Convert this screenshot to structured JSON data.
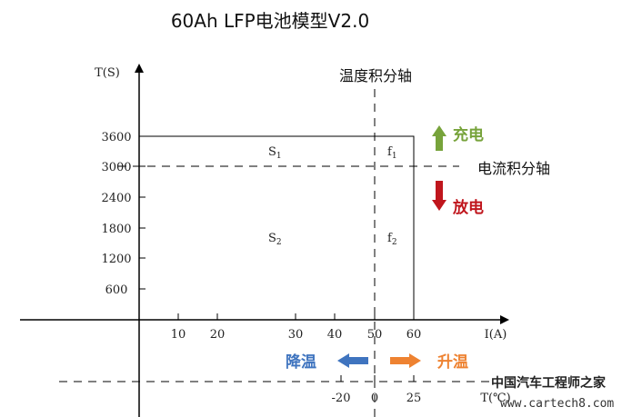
{
  "title": "60Ah LFP电池模型V2.0",
  "y_axis": {
    "label": "T(S)",
    "ticks": [
      "3600",
      "3000",
      "2400",
      "1800",
      "1200",
      "600"
    ]
  },
  "x_axis": {
    "label": "I(A)",
    "ticks": [
      "10",
      "20",
      "30",
      "40",
      "50",
      "60"
    ]
  },
  "temp_axis": {
    "label": "T(℃)",
    "ticks": [
      "-20",
      "0",
      "25"
    ]
  },
  "temp_integral_axis": "温度积分轴",
  "current_integral_axis": "电流积分轴",
  "regions": {
    "s1": "S",
    "s1_sub": "1",
    "f1": "f",
    "f1_sub": "1",
    "s2": "S",
    "s2_sub": "2",
    "f2": "f",
    "f2_sub": "2"
  },
  "legend": {
    "charge": "充电",
    "discharge": "放电",
    "cool": "降温",
    "heat": "升温"
  },
  "colors": {
    "charge": "#77a33b",
    "discharge": "#c0161d",
    "cool": "#3f74bf",
    "heat": "#ee8231"
  },
  "watermark": {
    "line1": "中国汽车工程师之家",
    "line2": "www.cartech8.com"
  }
}
